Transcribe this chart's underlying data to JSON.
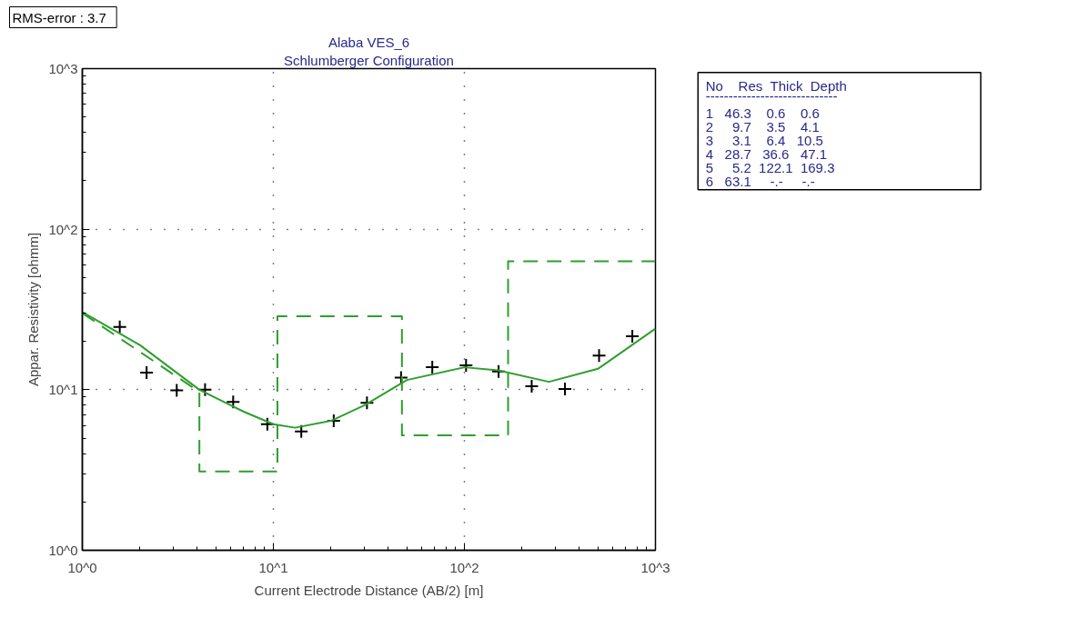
{
  "chart_data": [
    {
      "type": "scatter",
      "title": "Alaba VES_6",
      "subtitle": "Schlumberger Configuration",
      "xlabel": "Current Electrode Distance (AB/2) [m]",
      "ylabel": "Appar. Resistivity [ohmm]",
      "log": "xy",
      "grid": true,
      "xlim": [
        1,
        1000
      ],
      "ylim": [
        1,
        1000
      ],
      "xticks": [
        {
          "value": 1,
          "label": "10^0"
        },
        {
          "value": 10,
          "label": "10^1"
        },
        {
          "value": 100,
          "label": "10^2"
        },
        {
          "value": 1000,
          "label": "10^3"
        }
      ],
      "yticks": [
        {
          "value": 1,
          "label": "10^0"
        },
        {
          "value": 10,
          "label": "10^1"
        },
        {
          "value": 100,
          "label": "10^2"
        },
        {
          "value": 1000,
          "label": "10^3"
        }
      ],
      "annotations": [
        "RMS-error :   3.7"
      ],
      "series": [
        {
          "type": "scatter",
          "marker": "cross",
          "color": "#000000",
          "x": [
            1.57,
            2.17,
            3.12,
            4.39,
            6.16,
            9.3,
            14.0,
            20.7,
            30.9,
            46.6,
            67.9,
            102,
            151,
            225,
            336,
            507,
            757
          ],
          "values": [
            24.6,
            12.8,
            9.9,
            10.0,
            8.4,
            6.1,
            5.5,
            6.4,
            8.3,
            11.9,
            13.8,
            14.2,
            13.0,
            10.5,
            10.1,
            16.3,
            21.5
          ]
        },
        {
          "type": "line",
          "marker": "none",
          "line_style": "solid",
          "color": "#2e9e2e",
          "x": [
            1,
            2,
            4.1,
            7,
            10,
            13,
            20,
            30,
            50,
            100,
            150,
            277,
            500,
            1000
          ],
          "values": [
            30.5,
            19,
            10,
            7.3,
            6.1,
            5.8,
            6.4,
            8,
            11.5,
            13.8,
            13.2,
            11.2,
            13.5,
            24
          ]
        },
        {
          "type": "line",
          "marker": "none",
          "line_style": "dashed",
          "color": "#2e9e2e",
          "x": [
            1,
            4.1,
            4.1,
            10.5,
            10.5,
            47.1,
            47.1,
            169.3,
            169.3,
            1000
          ],
          "values": [
            30,
            9.7,
            3.1,
            3.1,
            28.7,
            28.7,
            5.2,
            5.2,
            63.1,
            63.1
          ]
        }
      ]
    },
    {
      "type": "other",
      "annotations": [
        "No    Res  Thick  Depth",
        "-----------------------------",
        "1   46.3    0.6    0.6",
        "2     9.7    3.5    4.1",
        "3     3.1    6.4   10.5",
        "4   28.7   36.6   47.1",
        "5     5.2  122.1  169.3",
        "6   63.1     -.-     -.-"
      ]
    }
  ]
}
